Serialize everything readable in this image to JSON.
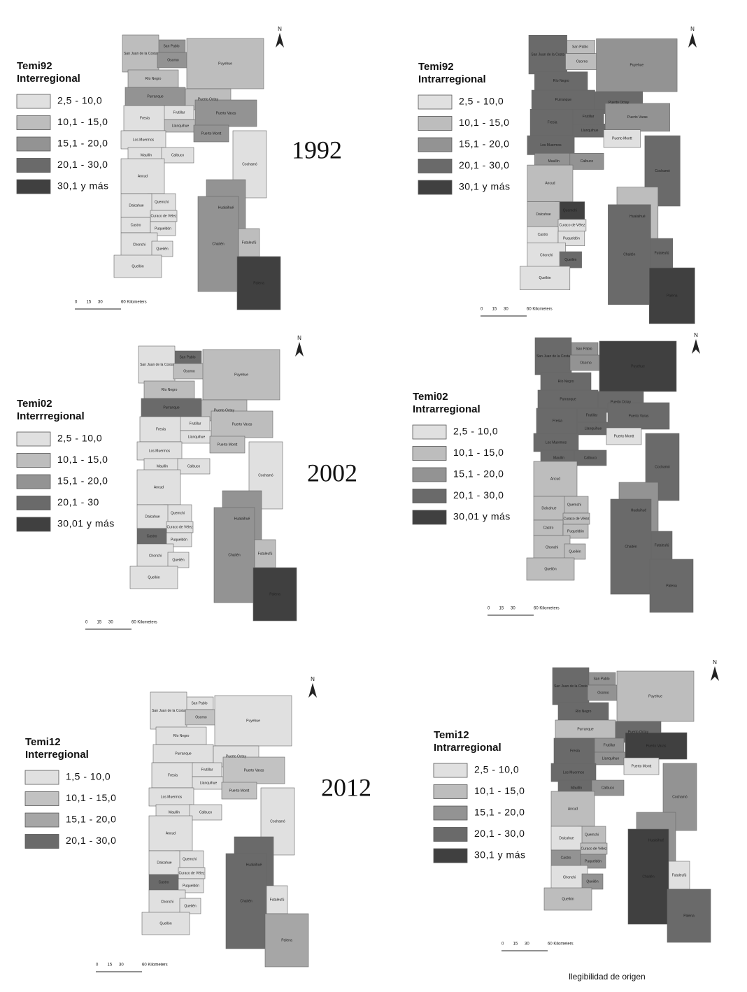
{
  "places": [
    "San Pablo",
    "San Juan de la Costa",
    "Osorno",
    "Río Negro",
    "Puyehue",
    "Purranque",
    "Puerto Octay",
    "Fresia",
    "Frutillar",
    "Llanquihue",
    "Puerto Varas",
    "Los Muermos",
    "Puerto Montt",
    "Maullín",
    "Calbuco",
    "Cochamó",
    "Ancud",
    "Quemchi",
    "Dalcahue",
    "Curaco de Vélez",
    "Castro",
    "Puqueldón",
    "Chonchi",
    "Queilén",
    "Quellón",
    "Hualaihué",
    "Chaitén",
    "Futaleufú",
    "Palena"
  ],
  "north_label": "N",
  "scale_labels": [
    "0",
    "15",
    "30",
    "60 Kilometers"
  ],
  "footer": "llegibilidad de origen",
  "maps": [
    {
      "legend_title": [
        "Temi92",
        "Interregional"
      ],
      "year": "1992",
      "legend": [
        {
          "label": "2,5 - 10,0",
          "color": "#e0e0e0"
        },
        {
          "label": "10,1 - 15,0",
          "color": "#bdbdbd"
        },
        {
          "label": "15,1 - 20,0",
          "color": "#939393"
        },
        {
          "label": "20,1 - 30,0",
          "color": "#6a6a6a"
        },
        {
          "label": "30,1 y más",
          "color": "#404040"
        }
      ],
      "region_colors": [
        "#939393",
        "#bdbdbd",
        "#939393",
        "#bdbdbd",
        "#bdbdbd",
        "#939393",
        "#bdbdbd",
        "#e0e0e0",
        "#e0e0e0",
        "#bdbdbd",
        "#939393",
        "#e0e0e0",
        "#939393",
        "#e0e0e0",
        "#e0e0e0",
        "#e0e0e0",
        "#e0e0e0",
        "#e0e0e0",
        "#e0e0e0",
        "#e0e0e0",
        "#e0e0e0",
        "#e0e0e0",
        "#e0e0e0",
        "#e0e0e0",
        "#e0e0e0",
        "#939393",
        "#939393",
        "#bdbdbd",
        "#404040"
      ]
    },
    {
      "legend_title": [
        "Temi92",
        "Intrarregional"
      ],
      "legend": [
        {
          "label": "2,5 - 10,0",
          "color": "#e0e0e0"
        },
        {
          "label": "10,1 - 15,0",
          "color": "#bdbdbd"
        },
        {
          "label": "15,1 - 20,0",
          "color": "#939393"
        },
        {
          "label": "20,1 - 30,0",
          "color": "#6a6a6a"
        },
        {
          "label": "30,1 y más",
          "color": "#404040"
        }
      ],
      "region_colors": [
        "#bdbdbd",
        "#6a6a6a",
        "#bdbdbd",
        "#6a6a6a",
        "#939393",
        "#6a6a6a",
        "#6a6a6a",
        "#6a6a6a",
        "#6a6a6a",
        "#6a6a6a",
        "#939393",
        "#6a6a6a",
        "#e0e0e0",
        "#939393",
        "#939393",
        "#6a6a6a",
        "#bdbdbd",
        "#404040",
        "#bdbdbd",
        "#e0e0e0",
        "#e0e0e0",
        "#e0e0e0",
        "#e0e0e0",
        "#6a6a6a",
        "#e0e0e0",
        "#bdbdbd",
        "#6a6a6a",
        "#6a6a6a",
        "#404040"
      ]
    },
    {
      "legend_title": [
        "Temi02",
        "Interrregional"
      ],
      "year": "2002",
      "legend": [
        {
          "label": "2,5 - 10,0",
          "color": "#e0e0e0"
        },
        {
          "label": "10,1 - 15,0",
          "color": "#bdbdbd"
        },
        {
          "label": "15,1 - 20,0",
          "color": "#939393"
        },
        {
          "label": "20,1 - 30",
          "color": "#6a6a6a"
        },
        {
          "label": "30,01 y más",
          "color": "#404040"
        }
      ],
      "region_colors": [
        "#6a6a6a",
        "#e0e0e0",
        "#bdbdbd",
        "#bdbdbd",
        "#bdbdbd",
        "#6a6a6a",
        "#bdbdbd",
        "#e0e0e0",
        "#e0e0e0",
        "#e0e0e0",
        "#bdbdbd",
        "#e0e0e0",
        "#bdbdbd",
        "#e0e0e0",
        "#e0e0e0",
        "#e0e0e0",
        "#e0e0e0",
        "#e0e0e0",
        "#e0e0e0",
        "#e0e0e0",
        "#6a6a6a",
        "#e0e0e0",
        "#e0e0e0",
        "#e0e0e0",
        "#e0e0e0",
        "#939393",
        "#939393",
        "#bdbdbd",
        "#404040"
      ]
    },
    {
      "legend_title": [
        "Temi02",
        "Intrarregional"
      ],
      "legend": [
        {
          "label": "2,5 - 10,0",
          "color": "#e0e0e0"
        },
        {
          "label": "10,1 - 15,0",
          "color": "#bdbdbd"
        },
        {
          "label": "15,1 - 20,0",
          "color": "#939393"
        },
        {
          "label": "20,1 - 30,0",
          "color": "#6a6a6a"
        },
        {
          "label": "30,01 y más",
          "color": "#404040"
        }
      ],
      "region_colors": [
        "#939393",
        "#6a6a6a",
        "#939393",
        "#6a6a6a",
        "#404040",
        "#6a6a6a",
        "#6a6a6a",
        "#6a6a6a",
        "#6a6a6a",
        "#6a6a6a",
        "#6a6a6a",
        "#6a6a6a",
        "#e0e0e0",
        "#6a6a6a",
        "#6a6a6a",
        "#6a6a6a",
        "#bdbdbd",
        "#bdbdbd",
        "#bdbdbd",
        "#bdbdbd",
        "#bdbdbd",
        "#bdbdbd",
        "#bdbdbd",
        "#bdbdbd",
        "#bdbdbd",
        "#939393",
        "#6a6a6a",
        "#6a6a6a",
        "#6a6a6a"
      ]
    },
    {
      "legend_title": [
        "Temi12",
        "Interregional"
      ],
      "year": "2012",
      "legend": [
        {
          "label": "1,5 - 10,0",
          "color": "#e0e0e0"
        },
        {
          "label": "10,1 - 15,0",
          "color": "#c2c2c2"
        },
        {
          "label": "15,1 - 20,0",
          "color": "#a6a6a6"
        },
        {
          "label": "20,1 - 30,0",
          "color": "#6a6a6a"
        }
      ],
      "region_colors": [
        "#e0e0e0",
        "#e0e0e0",
        "#c2c2c2",
        "#e0e0e0",
        "#e0e0e0",
        "#e0e0e0",
        "#e0e0e0",
        "#e0e0e0",
        "#e0e0e0",
        "#e0e0e0",
        "#c2c2c2",
        "#e0e0e0",
        "#c2c2c2",
        "#e0e0e0",
        "#e0e0e0",
        "#e0e0e0",
        "#e0e0e0",
        "#e0e0e0",
        "#e0e0e0",
        "#e0e0e0",
        "#6a6a6a",
        "#e0e0e0",
        "#e0e0e0",
        "#e0e0e0",
        "#e0e0e0",
        "#6a6a6a",
        "#6a6a6a",
        "#e0e0e0",
        "#a6a6a6"
      ]
    },
    {
      "legend_title": [
        "Temi12",
        "Intrarregional"
      ],
      "legend": [
        {
          "label": "2,5 - 10,0",
          "color": "#e0e0e0"
        },
        {
          "label": "10,1 - 15,0",
          "color": "#bdbdbd"
        },
        {
          "label": "15,1 - 20,0",
          "color": "#939393"
        },
        {
          "label": "20,1 - 30,0",
          "color": "#6a6a6a"
        },
        {
          "label": "30,1 y más",
          "color": "#404040"
        }
      ],
      "region_colors": [
        "#939393",
        "#6a6a6a",
        "#939393",
        "#6a6a6a",
        "#bdbdbd",
        "#bdbdbd",
        "#6a6a6a",
        "#6a6a6a",
        "#939393",
        "#939393",
        "#404040",
        "#6a6a6a",
        "#e0e0e0",
        "#6a6a6a",
        "#939393",
        "#939393",
        "#bdbdbd",
        "#bdbdbd",
        "#e0e0e0",
        "#bdbdbd",
        "#939393",
        "#939393",
        "#e0e0e0",
        "#939393",
        "#bdbdbd",
        "#939393",
        "#404040",
        "#e0e0e0",
        "#6a6a6a"
      ]
    }
  ]
}
